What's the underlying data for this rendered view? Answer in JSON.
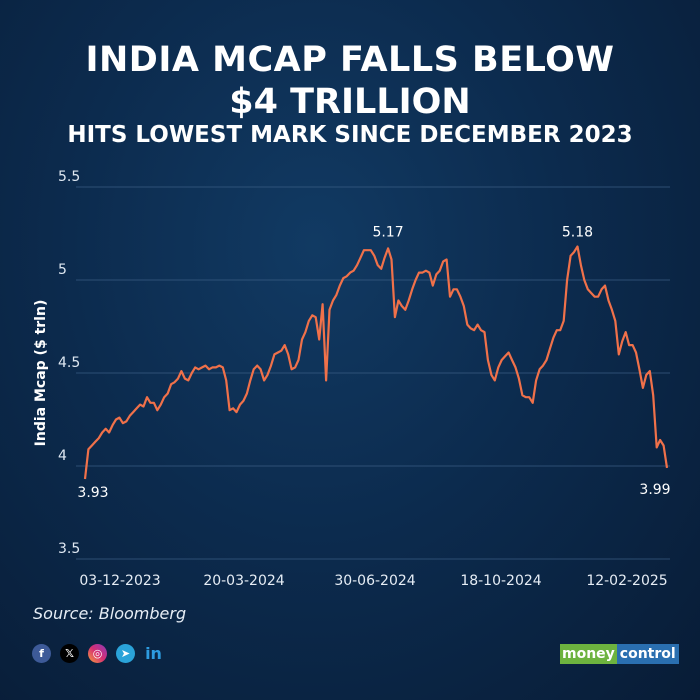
{
  "header": {
    "title_line1": "INDIA MCAP FALLS BELOW",
    "title_line2": "$4 TRILLION",
    "subtitle": "HITS LOWEST MARK SINCE DECEMBER 2023"
  },
  "chart_data": {
    "type": "line",
    "ylabel": "India Mcap ($ trln)",
    "ylim": [
      3.5,
      5.5
    ],
    "yticks": [
      "3.5",
      "4",
      "4.5",
      "5",
      "5.5"
    ],
    "xticks": [
      "03-12-2023",
      "20-03-2024",
      "30-06-2024",
      "18-10-2024",
      "12-02-2025"
    ],
    "grid": true,
    "line_color": "#f0714a",
    "annotations": [
      "3.93",
      "5.17",
      "5.18",
      "3.99"
    ],
    "values": [
      3.93,
      4.09,
      4.11,
      4.13,
      4.15,
      4.18,
      4.2,
      4.18,
      4.22,
      4.25,
      4.26,
      4.23,
      4.24,
      4.27,
      4.29,
      4.31,
      4.33,
      4.32,
      4.37,
      4.34,
      4.34,
      4.3,
      4.33,
      4.37,
      4.39,
      4.44,
      4.45,
      4.47,
      4.51,
      4.47,
      4.46,
      4.5,
      4.53,
      4.52,
      4.53,
      4.54,
      4.52,
      4.53,
      4.53,
      4.54,
      4.53,
      4.46,
      4.3,
      4.31,
      4.29,
      4.33,
      4.35,
      4.39,
      4.46,
      4.52,
      4.54,
      4.52,
      4.46,
      4.49,
      4.54,
      4.6,
      4.61,
      4.62,
      4.65,
      4.6,
      4.52,
      4.53,
      4.57,
      4.68,
      4.72,
      4.78,
      4.81,
      4.8,
      4.68,
      4.87,
      4.46,
      4.84,
      4.89,
      4.92,
      4.97,
      5.01,
      5.02,
      5.04,
      5.05,
      5.08,
      5.12,
      5.16,
      5.16,
      5.16,
      5.13,
      5.08,
      5.06,
      5.12,
      5.17,
      5.11,
      4.8,
      4.89,
      4.86,
      4.84,
      4.89,
      4.95,
      5.0,
      5.04,
      5.04,
      5.05,
      5.04,
      4.97,
      5.03,
      5.05,
      5.1,
      5.11,
      4.91,
      4.95,
      4.95,
      4.91,
      4.86,
      4.76,
      4.74,
      4.73,
      4.76,
      4.73,
      4.72,
      4.57,
      4.49,
      4.46,
      4.53,
      4.57,
      4.59,
      4.61,
      4.57,
      4.53,
      4.47,
      4.38,
      4.37,
      4.37,
      4.34,
      4.46,
      4.52,
      4.54,
      4.57,
      4.63,
      4.69,
      4.73,
      4.73,
      4.78,
      5.0,
      5.13,
      5.15,
      5.18,
      5.08,
      5.0,
      4.95,
      4.93,
      4.91,
      4.91,
      4.95,
      4.97,
      4.89,
      4.84,
      4.78,
      4.6,
      4.67,
      4.72,
      4.65,
      4.65,
      4.61,
      4.52,
      4.42,
      4.49,
      4.51,
      4.38,
      4.1,
      4.14,
      4.11,
      3.99
    ]
  },
  "footer": {
    "source": "Source: Bloomberg",
    "logo_text_1": "money",
    "logo_text_2": "control",
    "social_icons": [
      "facebook-icon",
      "x-icon",
      "instagram-icon",
      "telegram-icon",
      "linkedin-icon"
    ]
  }
}
